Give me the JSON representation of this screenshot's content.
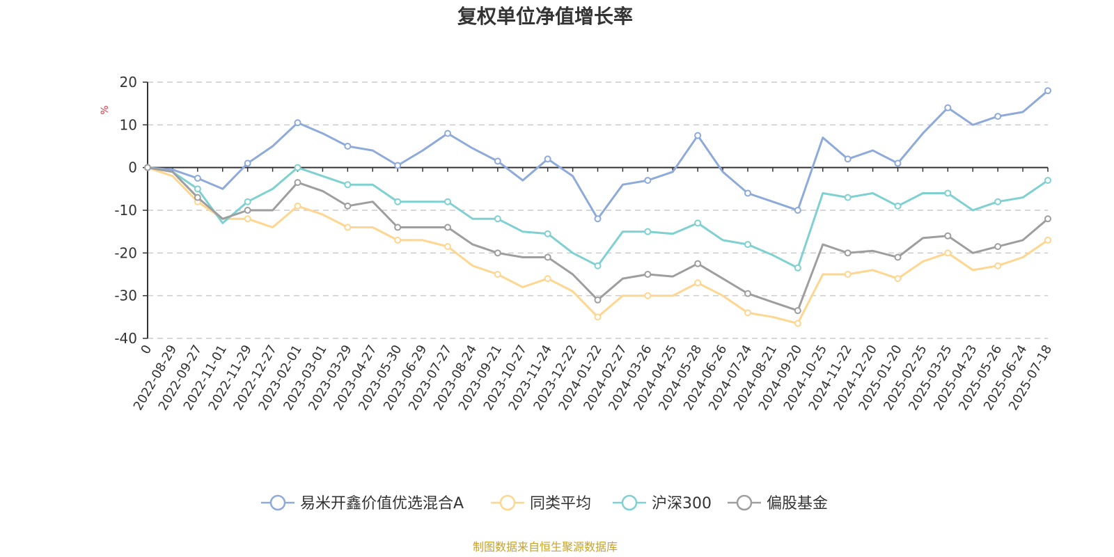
{
  "chart_data": {
    "type": "line",
    "title": "复权单位净值增长率",
    "ylabel": "%",
    "ylim": [
      -40,
      20
    ],
    "yticks": [
      20,
      10,
      0,
      -10,
      -20,
      -30,
      -40
    ],
    "grid": true,
    "legend_position": "bottom",
    "categories": [
      "0",
      "2022-08-29",
      "2022-09-27",
      "2022-11-01",
      "2022-11-29",
      "2022-12-27",
      "2023-02-01",
      "2023-03-01",
      "2023-03-29",
      "2023-04-27",
      "2023-05-30",
      "2023-06-29",
      "2023-07-27",
      "2023-08-24",
      "2023-09-21",
      "2023-10-27",
      "2023-11-24",
      "2023-12-22",
      "2024-01-22",
      "2024-02-27",
      "2024-03-26",
      "2024-04-25",
      "2024-05-28",
      "2024-06-26",
      "2024-07-24",
      "2024-08-21",
      "2024-09-20",
      "2024-10-25",
      "2024-11-22",
      "2024-12-20",
      "2025-01-20",
      "2025-02-25",
      "2025-03-25",
      "2025-04-23",
      "2025-05-26",
      "2025-06-24",
      "2025-07-18"
    ],
    "series": [
      {
        "name": "易米开鑫价值优选混合A",
        "color": "#8eaadb",
        "values": [
          0,
          -0.5,
          -2.5,
          -5,
          1,
          5,
          10.5,
          8,
          5,
          4,
          0.5,
          4,
          8,
          4.5,
          1.5,
          -3,
          2,
          -2,
          -12,
          -4,
          -3,
          -1,
          7.5,
          -1,
          -6,
          -8,
          -10,
          7,
          2,
          4,
          1,
          8,
          14,
          10,
          12,
          13,
          18
        ]
      },
      {
        "name": "同类平均",
        "color": "#ffd68f",
        "values": [
          0,
          -2,
          -8,
          -12,
          -12,
          -14,
          -9,
          -11,
          -14,
          -14,
          -17,
          -17,
          -18.5,
          -23,
          -25,
          -28,
          -26,
          -29,
          -35,
          -30,
          -30,
          -30,
          -27,
          -30,
          -34,
          -35,
          -36.5,
          -25,
          -25,
          -24,
          -26,
          -22,
          -20,
          -24,
          -23,
          -21,
          -17
        ]
      },
      {
        "name": "沪深300",
        "color": "#7fd1d1",
        "values": [
          0,
          -1,
          -5,
          -13,
          -8,
          -5,
          0,
          -2,
          -4,
          -4,
          -8,
          -8,
          -8,
          -12,
          -12,
          -15,
          -15.5,
          -20,
          -23,
          -15,
          -15,
          -15.5,
          -13,
          -17,
          -18,
          -20.5,
          -23.5,
          -6,
          -7,
          -6,
          -9,
          -6,
          -6,
          -10,
          -8,
          -7,
          -3
        ]
      },
      {
        "name": "偏股基金",
        "color": "#9e9e9e",
        "values": [
          0,
          -1,
          -7,
          -12,
          -10,
          -10,
          -3.5,
          -5.5,
          -9,
          -8,
          -14,
          -14,
          -14,
          -18,
          -20,
          -21,
          -21,
          -25,
          -31,
          -26,
          -25,
          -25.5,
          -22.5,
          -26,
          -29.5,
          -31.5,
          -33.5,
          -18,
          -20,
          -19.5,
          -21,
          -16.5,
          -16,
          -20,
          -18.5,
          -17,
          -12
        ]
      }
    ]
  },
  "source": "制图数据来自恒生聚源数据库"
}
